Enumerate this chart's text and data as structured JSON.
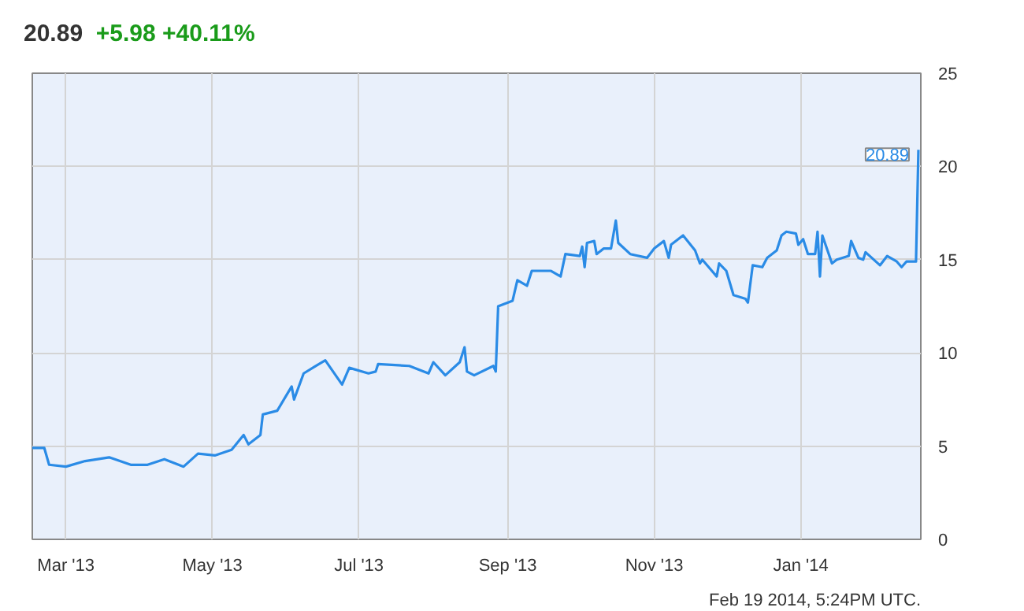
{
  "chart_data": {
    "type": "line",
    "title": "20.89",
    "subtitle": "+5.98 +40.11%",
    "x": [
      "2013-02-15",
      "2013-02-20",
      "2013-02-22",
      "2013-03-01",
      "2013-03-09",
      "2013-03-19",
      "2013-03-28",
      "2013-04-04",
      "2013-04-11",
      "2013-04-19",
      "2013-04-25",
      "2013-05-02",
      "2013-05-09",
      "2013-05-14",
      "2013-05-16",
      "2013-05-21",
      "2013-05-22",
      "2013-05-28",
      "2013-06-03",
      "2013-06-04",
      "2013-06-08",
      "2013-06-13",
      "2013-06-17",
      "2013-06-24",
      "2013-06-27",
      "2013-07-05",
      "2013-07-08",
      "2013-07-09",
      "2013-07-22",
      "2013-07-30",
      "2013-08-01",
      "2013-08-06",
      "2013-08-12",
      "2013-08-14",
      "2013-08-15",
      "2013-08-18",
      "2013-08-26",
      "2013-08-27",
      "2013-08-28",
      "2013-09-03",
      "2013-09-05",
      "2013-09-09",
      "2013-09-11",
      "2013-09-19",
      "2013-09-23",
      "2013-09-25",
      "2013-10-01",
      "2013-10-02",
      "2013-10-03",
      "2013-10-04",
      "2013-10-07",
      "2013-10-08",
      "2013-10-11",
      "2013-10-14",
      "2013-10-16",
      "2013-10-17",
      "2013-10-22",
      "2013-10-29",
      "2013-11-01",
      "2013-11-05",
      "2013-11-07",
      "2013-11-08",
      "2013-11-13",
      "2013-11-18",
      "2013-11-20",
      "2013-11-21",
      "2013-11-25",
      "2013-11-27",
      "2013-11-28",
      "2013-12-01",
      "2013-12-04",
      "2013-12-09",
      "2013-12-10",
      "2013-12-12",
      "2013-12-16",
      "2013-12-18",
      "2013-12-22",
      "2013-12-24",
      "2013-12-26",
      "2013-12-30",
      "2013-12-31",
      "2014-01-02",
      "2014-01-04",
      "2014-01-07",
      "2014-01-08",
      "2014-01-09",
      "2014-01-10",
      "2014-01-14",
      "2014-01-16",
      "2014-01-21",
      "2014-01-22",
      "2014-01-25",
      "2014-01-27",
      "2014-01-28",
      "2014-02-03",
      "2014-02-06",
      "2014-02-10",
      "2014-02-12",
      "2014-02-14",
      "2014-02-18",
      "2014-02-19"
    ],
    "series": [
      {
        "color": "#2a8be6",
        "values": [
          4.9,
          4.9,
          4.0,
          3.9,
          4.2,
          4.4,
          4.0,
          4.0,
          4.3,
          3.9,
          4.6,
          4.5,
          4.8,
          5.6,
          5.1,
          5.6,
          6.7,
          6.9,
          8.2,
          7.5,
          8.9,
          9.3,
          9.6,
          8.3,
          9.2,
          8.9,
          9.0,
          9.4,
          9.3,
          8.9,
          9.5,
          8.8,
          9.5,
          10.3,
          9.0,
          8.8,
          9.3,
          9.0,
          12.5,
          12.8,
          13.9,
          13.6,
          14.4,
          14.4,
          14.1,
          15.3,
          15.2,
          15.7,
          14.6,
          15.9,
          16.0,
          15.3,
          15.6,
          15.6,
          17.1,
          15.9,
          15.3,
          15.1,
          15.6,
          16.0,
          15.1,
          15.8,
          16.3,
          15.5,
          14.8,
          15.0,
          14.4,
          14.1,
          14.8,
          14.4,
          13.1,
          12.9,
          12.7,
          14.7,
          14.6,
          15.1,
          15.5,
          16.3,
          16.5,
          16.4,
          15.8,
          16.1,
          15.3,
          15.3,
          16.5,
          14.1,
          16.3,
          14.8,
          15.0,
          15.2,
          16.0,
          15.1,
          15.0,
          15.4,
          14.7,
          15.2,
          14.9,
          14.6,
          14.9,
          14.9,
          20.89
        ]
      }
    ],
    "xlim": [
      "2013-02-15",
      "2014-02-20"
    ],
    "xticks": [
      {
        "value": "2013-03-01",
        "label": "Mar '13"
      },
      {
        "value": "2013-05-01",
        "label": "May '13"
      },
      {
        "value": "2013-07-01",
        "label": "Jul '13"
      },
      {
        "value": "2013-09-01",
        "label": "Sep '13"
      },
      {
        "value": "2013-11-01",
        "label": "Nov '13"
      },
      {
        "value": "2014-01-01",
        "label": "Jan '14"
      }
    ],
    "ylim": [
      0,
      25
    ],
    "yticks": [
      0,
      5,
      10,
      15,
      20,
      25
    ],
    "grid": true,
    "marker": "none",
    "line_style": "solid",
    "annotations": [
      {
        "text": "20.89",
        "x": "2014-02-19",
        "y": 20.89
      },
      "Feb 19 2014, 5:24PM UTC."
    ]
  }
}
